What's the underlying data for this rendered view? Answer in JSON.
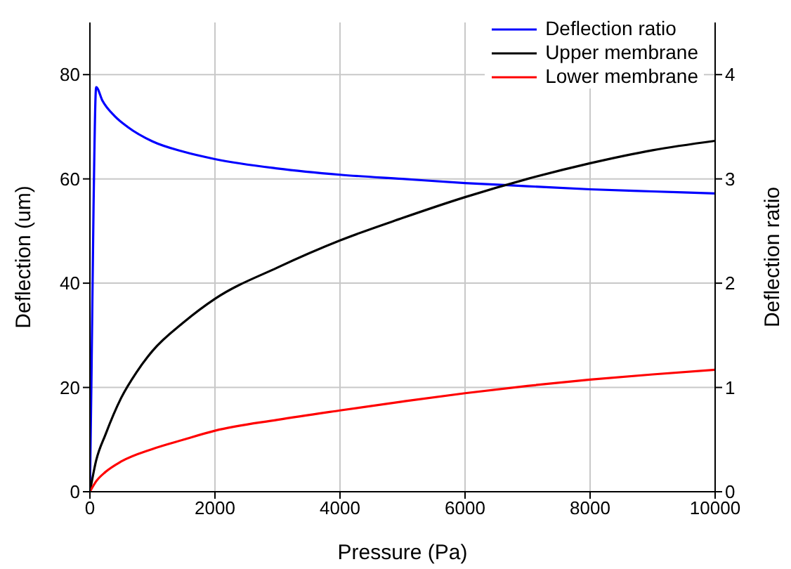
{
  "chart_data": {
    "type": "line",
    "xlabel": "Pressure (Pa)",
    "ylabel": "Deflection (um)",
    "y2label": "Deflection ratio",
    "xlim": [
      0,
      10000
    ],
    "xticks": [
      0,
      2000,
      4000,
      6000,
      8000,
      10000
    ],
    "ylim": [
      0,
      90
    ],
    "yticks": [
      0,
      20,
      40,
      60,
      80
    ],
    "y2lim": [
      0,
      4.5
    ],
    "y2ticks": [
      0,
      1,
      2,
      3,
      4
    ],
    "grid": true,
    "legend": "top right",
    "marker": "none",
    "line_style": "solid",
    "series": [
      {
        "name": "Deflection ratio",
        "color": "#0000ff",
        "axis": "y2",
        "x": [
          0,
          25,
          58,
          100,
          200,
          400,
          600,
          1000,
          1500,
          2000,
          3000,
          4000,
          5000,
          6000,
          7000,
          8000,
          9000,
          10000
        ],
        "values": [
          0,
          1.1,
          2.73,
          3.88,
          3.75,
          3.6,
          3.5,
          3.36,
          3.26,
          3.19,
          3.1,
          3.04,
          3.0,
          2.96,
          2.93,
          2.9,
          2.88,
          2.86
        ]
      },
      {
        "name": "Upper membrane",
        "color": "#000000",
        "x": [
          0,
          100,
          250,
          500,
          750,
          1000,
          1500,
          2000,
          3000,
          4000,
          5000,
          6000,
          7000,
          8000,
          9000,
          10000
        ],
        "values": [
          0,
          6,
          11,
          18,
          23,
          27,
          32.5,
          37,
          43,
          48.2,
          52.5,
          56.5,
          60,
          63,
          65.5,
          67.3
        ]
      },
      {
        "name": "Lower membrane",
        "color": "#ff0000",
        "x": [
          0,
          100,
          250,
          500,
          1000,
          1500,
          2000,
          3000,
          4000,
          5000,
          6000,
          7000,
          8000,
          9000,
          10000
        ],
        "values": [
          0,
          2,
          3.8,
          5.8,
          8.2,
          10,
          11.7,
          13.8,
          15.6,
          17.3,
          18.9,
          20.3,
          21.5,
          22.5,
          23.4
        ]
      }
    ]
  }
}
